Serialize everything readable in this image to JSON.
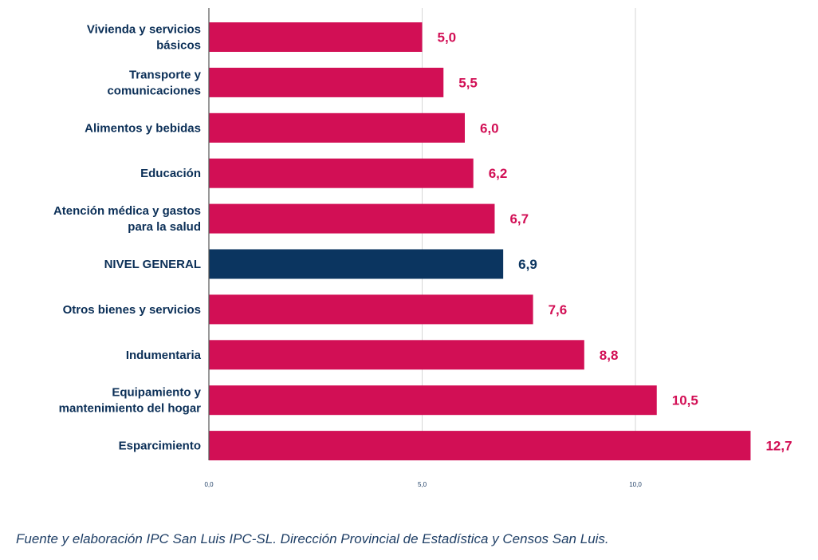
{
  "chart_data": {
    "type": "bar",
    "orientation": "horizontal",
    "categories": [
      [
        "Vivienda y servicios",
        "básicos"
      ],
      [
        "Transporte y",
        "comunicaciones"
      ],
      [
        "Alimentos y bebidas"
      ],
      [
        "Educación"
      ],
      [
        "Atención médica y gastos",
        "para la salud"
      ],
      [
        "NIVEL GENERAL"
      ],
      [
        "Otros bienes y servicios"
      ],
      [
        "Indumentaria"
      ],
      [
        "Equipamiento y",
        "mantenimiento del hogar"
      ],
      [
        "Esparcimiento"
      ]
    ],
    "values": [
      5.0,
      5.5,
      6.0,
      6.2,
      6.7,
      6.9,
      7.6,
      8.8,
      10.5,
      12.7
    ],
    "value_labels": [
      "5,0",
      "5,5",
      "6,0",
      "6,2",
      "6,7",
      "6,9",
      "7,6",
      "8,8",
      "10,5",
      "12,7"
    ],
    "highlight_index": 5,
    "xlim": [
      0,
      13.5
    ],
    "xticks": [
      0,
      5,
      10
    ],
    "xtick_labels": [
      "0,0",
      "5,0",
      "10,0"
    ],
    "grid": true,
    "legend": "none",
    "title": "",
    "xlabel": "",
    "ylabel": "",
    "colors": {
      "bar": "#d20f55",
      "highlight": "#0b3560",
      "category_text": "#0b2f57",
      "grid": "#d6d6d6",
      "axis": "#555555"
    }
  },
  "source": "Fuente y elaboración IPC San Luis IPC-SL. Dirección Provincial de Estadística y Censos San Luis."
}
